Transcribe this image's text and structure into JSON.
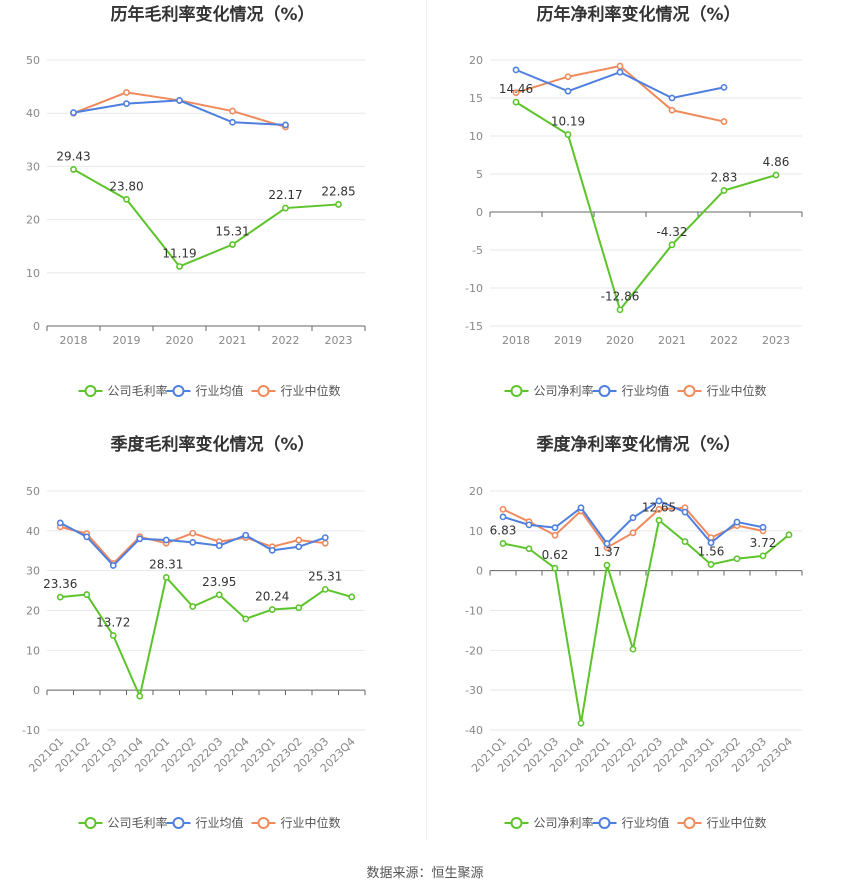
{
  "legend": {
    "gross": "公司毛利率",
    "net": "公司净利率",
    "avg": "行业均值",
    "median": "行业中位数"
  },
  "colors": {
    "company": "#5cc42a",
    "avg": "#4e7fe0",
    "median": "#f08a5d"
  },
  "source": "数据来源：恒生聚源",
  "chart_data": [
    {
      "type": "line",
      "title": "历年毛利率变化情况（%）",
      "categories": [
        "2018",
        "2019",
        "2020",
        "2021",
        "2022",
        "2023"
      ],
      "ylim": [
        0,
        50
      ],
      "yticks": [
        0,
        10,
        20,
        30,
        40,
        50
      ],
      "series": [
        {
          "name": "公司毛利率",
          "values": [
            29.43,
            23.8,
            11.19,
            15.31,
            22.17,
            22.85
          ],
          "labels": [
            "29.43",
            "23.80",
            "11.19",
            "15.31",
            "22.17",
            "22.85"
          ]
        },
        {
          "name": "行业均值",
          "values": [
            40.1,
            41.8,
            42.4,
            38.3,
            37.8,
            null
          ]
        },
        {
          "name": "行业中位数",
          "values": [
            40.0,
            43.9,
            42.4,
            40.4,
            37.4,
            null
          ]
        }
      ]
    },
    {
      "type": "line",
      "title": "历年净利率变化情况（%）",
      "categories": [
        "2018",
        "2019",
        "2020",
        "2021",
        "2022",
        "2023"
      ],
      "ylim": [
        -15,
        20
      ],
      "yticks": [
        -15,
        -10,
        -5,
        0,
        5,
        10,
        15,
        20
      ],
      "series": [
        {
          "name": "公司净利率",
          "values": [
            14.46,
            10.19,
            -12.86,
            -4.32,
            2.83,
            4.86
          ],
          "labels": [
            "14.46",
            "10.19",
            "-12.86",
            "-4.32",
            "2.83",
            "4.86"
          ]
        },
        {
          "name": "行业均值",
          "values": [
            18.7,
            15.9,
            18.4,
            15.0,
            16.4,
            null
          ]
        },
        {
          "name": "行业中位数",
          "values": [
            15.7,
            17.8,
            19.2,
            13.4,
            11.9,
            null
          ]
        }
      ]
    },
    {
      "type": "line",
      "title": "季度毛利率变化情况（%）",
      "categories": [
        "2021Q1",
        "2021Q2",
        "2021Q3",
        "2021Q4",
        "2022Q1",
        "2022Q2",
        "2022Q3",
        "2022Q4",
        "2023Q1",
        "2023Q2",
        "2023Q3",
        "2023Q4"
      ],
      "ylim": [
        -10,
        50
      ],
      "yticks": [
        -10,
        0,
        10,
        20,
        30,
        40,
        50
      ],
      "series": [
        {
          "name": "公司毛利率",
          "values": [
            23.36,
            24.0,
            13.72,
            -1.5,
            28.31,
            21.0,
            23.95,
            17.9,
            20.24,
            20.7,
            25.31,
            23.4
          ],
          "labels": [
            "23.36",
            "",
            "13.72",
            "",
            "28.31",
            "",
            "23.95",
            "",
            "20.24",
            "",
            "25.31",
            ""
          ]
        },
        {
          "name": "行业均值",
          "values": [
            42.0,
            38.5,
            31.3,
            38.0,
            37.7,
            37.1,
            36.3,
            38.9,
            35.1,
            36.0,
            38.3,
            null
          ]
        },
        {
          "name": "行业中位数",
          "values": [
            41.0,
            39.3,
            31.8,
            38.5,
            36.9,
            39.4,
            37.3,
            38.3,
            36.0,
            37.7,
            36.9,
            null
          ]
        }
      ]
    },
    {
      "type": "line",
      "title": "季度净利率变化情况（%）",
      "categories": [
        "2021Q1",
        "2021Q2",
        "2021Q3",
        "2021Q4",
        "2022Q1",
        "2022Q2",
        "2022Q3",
        "2022Q4",
        "2023Q1",
        "2023Q2",
        "2023Q3",
        "2023Q4"
      ],
      "ylim": [
        -40,
        20
      ],
      "yticks": [
        -40,
        -30,
        -20,
        -10,
        0,
        10,
        20
      ],
      "series": [
        {
          "name": "公司净利率",
          "values": [
            6.83,
            5.5,
            0.62,
            -38.3,
            1.37,
            -19.7,
            12.65,
            7.3,
            1.56,
            3.0,
            3.72,
            9.0
          ],
          "labels": [
            "6.83",
            "",
            "0.62",
            "",
            "1.37",
            "",
            "12.65",
            "",
            "1.56",
            "",
            "3.72",
            ""
          ]
        },
        {
          "name": "行业均值",
          "values": [
            13.5,
            11.5,
            10.8,
            15.8,
            6.8,
            13.3,
            17.5,
            14.7,
            7.0,
            12.2,
            10.9,
            null
          ]
        },
        {
          "name": "行业中位数",
          "values": [
            15.4,
            12.3,
            8.9,
            15.0,
            5.8,
            9.5,
            15.4,
            15.8,
            8.3,
            11.3,
            10.0,
            null
          ]
        }
      ]
    }
  ]
}
